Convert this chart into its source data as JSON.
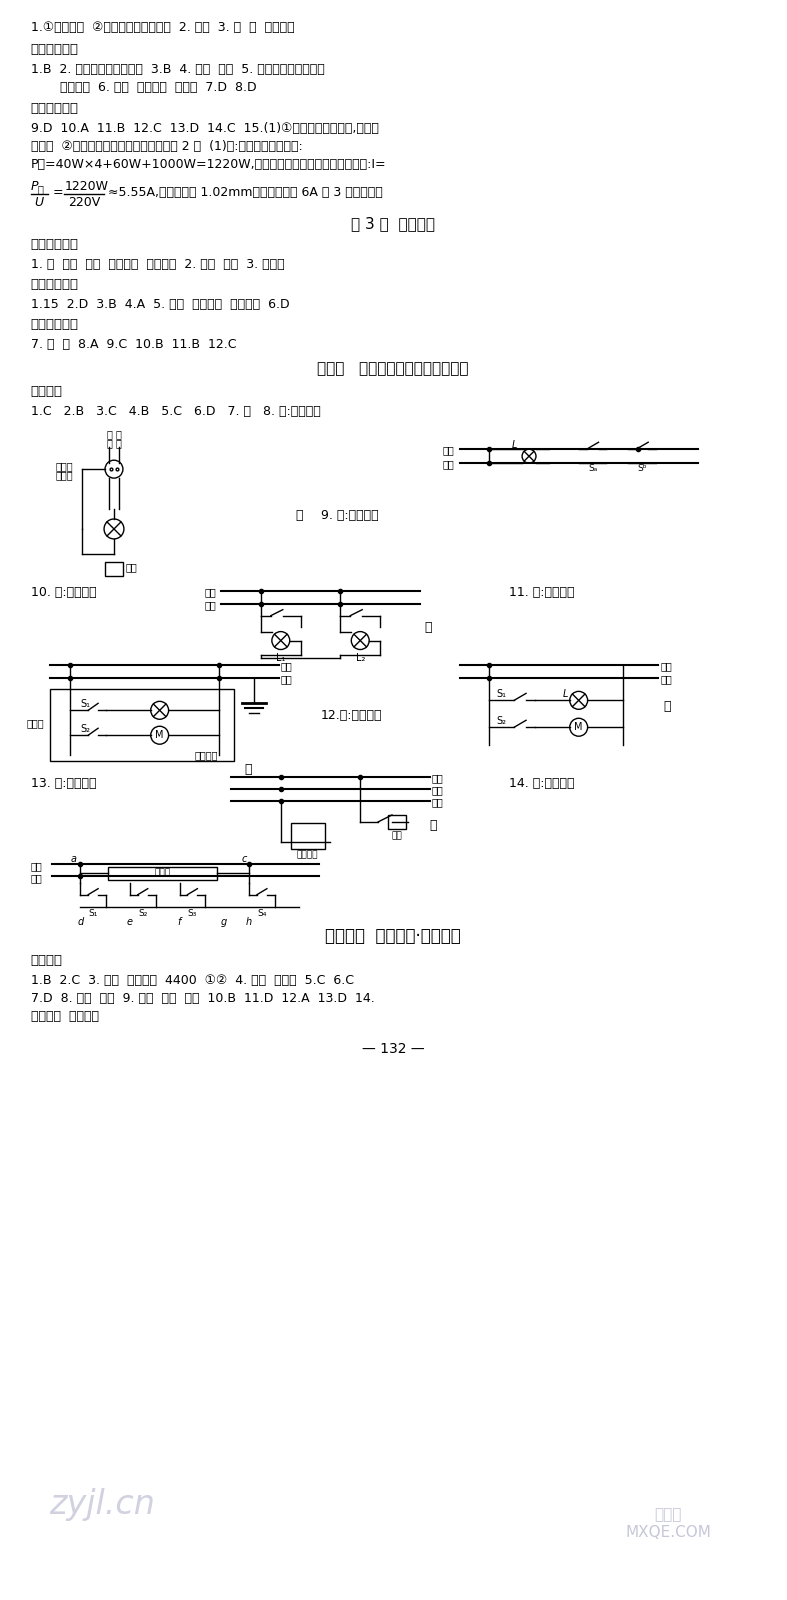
{
  "bg_color": "#ffffff",
  "text_color": "#000000",
  "page_number": "132",
  "watermark1": "zyjl.cn",
  "watermark2": "MXQE.COM",
  "line1": "1.①发生短路  ②用电器的总功率过大  2. 切断  3. 大  低  空气开关",
  "header1": "课内夸实基础",
  "line2a": "1.B  2. 用电器的总功率过大  3.B  4. 短路  接地  5. 用电器的总功率过大",
  "line2b": "   发生短路  6. 短路  空气开关  总功率  7.D  8.D",
  "header2": "课外巩固提升",
  "line3a": "9.D  10.A  11.B  12.C  13.D  14.C  15.(1)①保险丝的直径越大,额定电",
  "line3b": "流越大  ②保险丝的燔断电流是额定电流的 2 倍  (1)解:用电器的总功率为:",
  "line3c": "P总=40W×4+60W+1000W=1220W,小明家照明电路的最大工作电流为:I=",
  "formula_rest": "≈5.55A,应选取直径 1.02mm、额定电流为 6A 的 3 号保险丝。",
  "section_title1": "第 3 节  安全用电",
  "header3": "课前预习感知",
  "line4": "1. 火  单线  双线  高压电弧  跨步电压  2. 接触  靠近  3. 避雷针",
  "header4": "课内夸实基础",
  "line5": "1.15  2.D  3.B  4.A  5. 高压  跨步电压  高压电弧  6.D",
  "header5": "课外巩固提升",
  "line6": "7. 火  零  8.A  9.C  10.B  11.B  12.C",
  "section_title2": "专题五   家庭电路的故障分析与作图",
  "header6": "专题训练",
  "line7": "1.C   2.B   3.C   4.B   5.C   6.D   7. 会   8. 解:如图所示",
  "label9": "9. 解:如图所示",
  "label10": "10. 解:如图所示",
  "label11": "11. 解:如图所示",
  "label12": "12.解:如图所示",
  "label13": "13. 解:如图所示",
  "label14": "14. 解:如图所示",
  "section_title3": "第十九章  挑战中考·易错专攻",
  "header7": "考点聚焦",
  "line8a": "1.B  2.C  3. 标定  额定最大  4400  ①②  4. 发光  不发光  5.C  6.C",
  "line8b": "7.D  8. 导体  短路  9. 并联  短路  过大  10.B  11.D  12.A  13.D  14.",
  "line8c": "没有接地  切断电源"
}
